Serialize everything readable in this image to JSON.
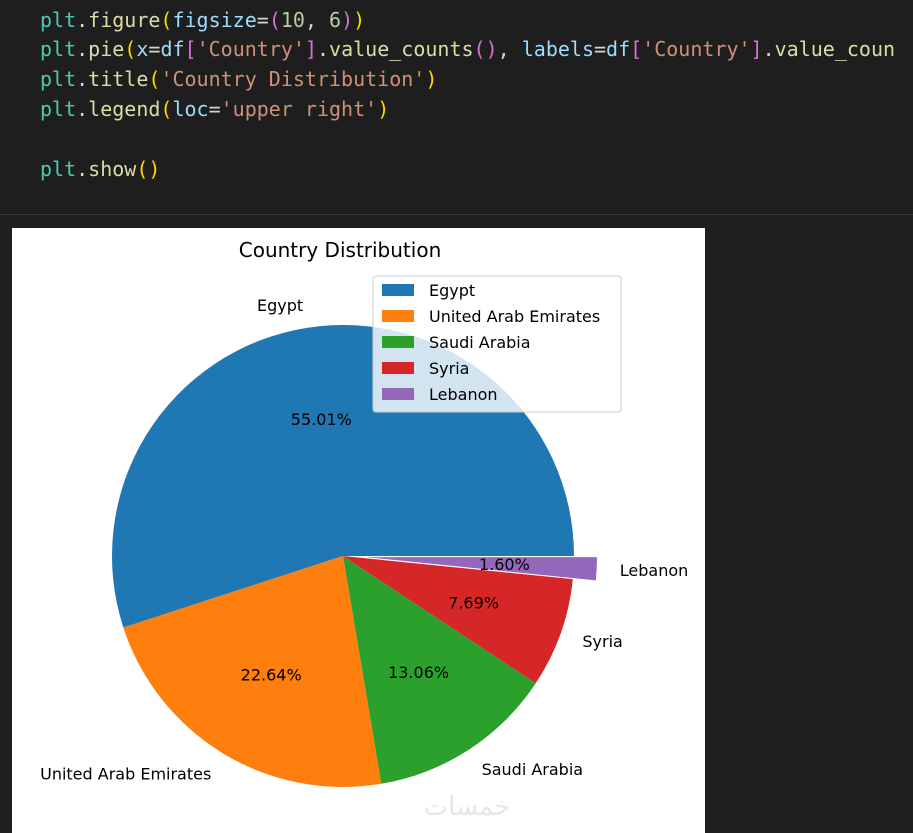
{
  "code": {
    "line1": [
      {
        "t": "plt",
        "c": "tok-var"
      },
      {
        "t": ".",
        "c": "tok-p"
      },
      {
        "t": "figure",
        "c": "tok-fn"
      },
      {
        "t": "(",
        "c": "tok-b1"
      },
      {
        "t": "figsize",
        "c": "tok-param"
      },
      {
        "t": "=",
        "c": "tok-p"
      },
      {
        "t": "(",
        "c": "tok-b2"
      },
      {
        "t": "10",
        "c": "tok-num"
      },
      {
        "t": ", ",
        "c": "tok-p"
      },
      {
        "t": "6",
        "c": "tok-num"
      },
      {
        "t": ")",
        "c": "tok-b2"
      },
      {
        "t": ")",
        "c": "tok-b1"
      }
    ],
    "line2": [
      {
        "t": "plt",
        "c": "tok-var"
      },
      {
        "t": ".",
        "c": "tok-p"
      },
      {
        "t": "pie",
        "c": "tok-fn"
      },
      {
        "t": "(",
        "c": "tok-b1"
      },
      {
        "t": "x",
        "c": "tok-param"
      },
      {
        "t": "=",
        "c": "tok-p"
      },
      {
        "t": "df",
        "c": "tok-param"
      },
      {
        "t": "[",
        "c": "tok-b2"
      },
      {
        "t": "'Country'",
        "c": "tok-str"
      },
      {
        "t": "]",
        "c": "tok-b2"
      },
      {
        "t": ".",
        "c": "tok-p"
      },
      {
        "t": "value_counts",
        "c": "tok-fn"
      },
      {
        "t": "()",
        "c": "tok-b2"
      },
      {
        "t": ", ",
        "c": "tok-p"
      },
      {
        "t": "labels",
        "c": "tok-param"
      },
      {
        "t": "=",
        "c": "tok-p"
      },
      {
        "t": "df",
        "c": "tok-param"
      },
      {
        "t": "[",
        "c": "tok-b2"
      },
      {
        "t": "'Country'",
        "c": "tok-str"
      },
      {
        "t": "]",
        "c": "tok-b2"
      },
      {
        "t": ".",
        "c": "tok-p"
      },
      {
        "t": "value_coun",
        "c": "tok-fn"
      }
    ],
    "line3": [
      {
        "t": "plt",
        "c": "tok-var"
      },
      {
        "t": ".",
        "c": "tok-p"
      },
      {
        "t": "title",
        "c": "tok-fn"
      },
      {
        "t": "(",
        "c": "tok-b1"
      },
      {
        "t": "'Country Distribution'",
        "c": "tok-str"
      },
      {
        "t": ")",
        "c": "tok-b1"
      }
    ],
    "line4": [
      {
        "t": "plt",
        "c": "tok-var"
      },
      {
        "t": ".",
        "c": "tok-p"
      },
      {
        "t": "legend",
        "c": "tok-fn"
      },
      {
        "t": "(",
        "c": "tok-b1"
      },
      {
        "t": "loc",
        "c": "tok-param"
      },
      {
        "t": "=",
        "c": "tok-p"
      },
      {
        "t": "'upper right'",
        "c": "tok-str"
      },
      {
        "t": ")",
        "c": "tok-b1"
      }
    ],
    "line5": [
      {
        "t": "plt",
        "c": "tok-var"
      },
      {
        "t": ".",
        "c": "tok-p"
      },
      {
        "t": "show",
        "c": "tok-fn"
      },
      {
        "t": "()",
        "c": "tok-b1"
      }
    ]
  },
  "chart_data": {
    "type": "pie",
    "title": "Country Distribution",
    "slices": [
      {
        "label": "Egypt",
        "pct": 55.01,
        "pct_label": "55.01%",
        "color": "#1f77b4",
        "explode": false
      },
      {
        "label": "United Arab Emirates",
        "pct": 22.64,
        "pct_label": "22.64%",
        "color": "#ff7f0e",
        "explode": false
      },
      {
        "label": "Saudi Arabia",
        "pct": 13.06,
        "pct_label": "13.06%",
        "color": "#2ca02c",
        "explode": false
      },
      {
        "label": "Syria",
        "pct": 7.69,
        "pct_label": "7.69%",
        "color": "#d62728",
        "explode": false
      },
      {
        "label": "Lebanon",
        "pct": 1.6,
        "pct_label": "1.60%",
        "color": "#9467bd",
        "explode": true
      }
    ],
    "legend": {
      "placement": "upper right",
      "entries": [
        "Egypt",
        "United Arab Emirates",
        "Saudi Arabia",
        "Syria",
        "Lebanon"
      ]
    }
  },
  "watermark": "خمسات"
}
